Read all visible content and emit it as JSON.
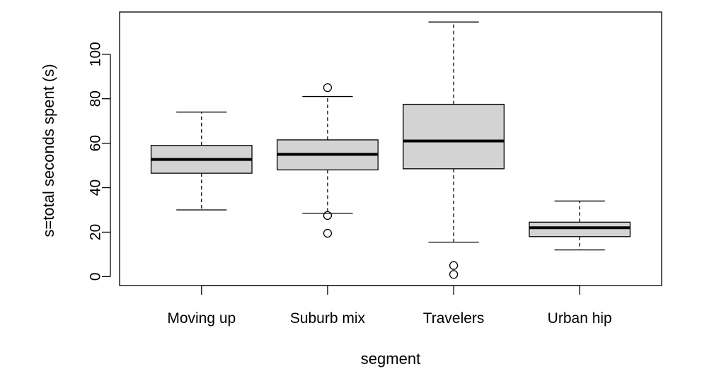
{
  "chart_data": {
    "type": "boxplot",
    "title": "",
    "xlabel": "segment",
    "ylabel": "s=total seconds spent (s)",
    "ylim": [
      -4,
      119
    ],
    "yticks": [
      0,
      20,
      40,
      60,
      80,
      100
    ],
    "grid": false,
    "legend": "none",
    "box_fill": "#d3d3d3",
    "categories": [
      "Moving up",
      "Suburb mix",
      "Travelers",
      "Urban hip"
    ],
    "boxes": [
      {
        "name": "Moving up",
        "whisker_low": 30,
        "q1": 46.5,
        "median": 52.7,
        "q3": 59,
        "whisker_high": 74,
        "outliers": []
      },
      {
        "name": "Suburb mix",
        "whisker_low": 28.5,
        "q1": 48,
        "median": 55,
        "q3": 61.5,
        "whisker_high": 81,
        "outliers": [
          85,
          27.5,
          19.5
        ]
      },
      {
        "name": "Travelers",
        "whisker_low": 15.5,
        "q1": 48.5,
        "median": 61,
        "q3": 77.5,
        "whisker_high": 114.5,
        "outliers": [
          5,
          1
        ]
      },
      {
        "name": "Urban hip",
        "whisker_low": 12,
        "q1": 18,
        "median": 22,
        "q3": 24.5,
        "whisker_high": 34,
        "outliers": []
      }
    ]
  }
}
